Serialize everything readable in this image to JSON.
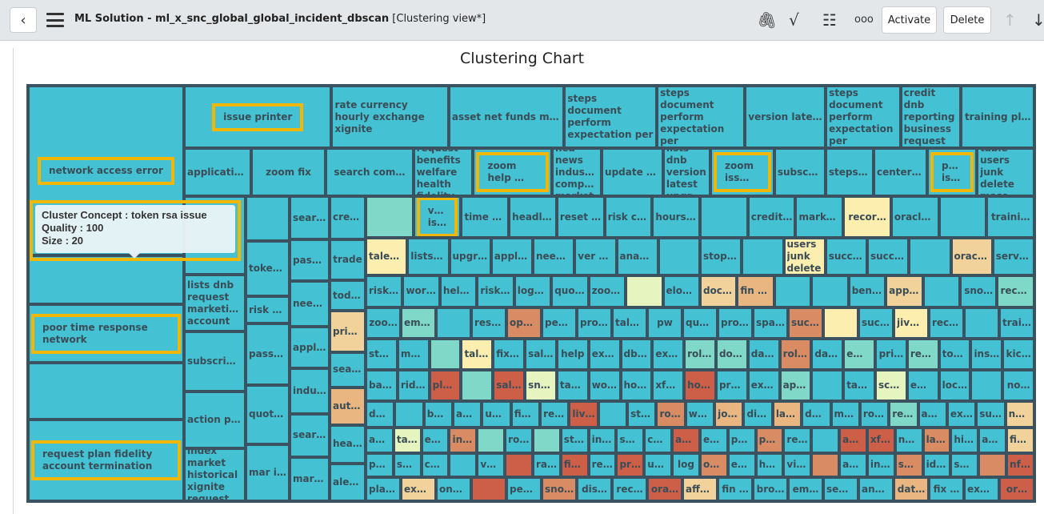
{
  "header": {
    "back_icon": "chevron-left-icon",
    "menu_icon": "hamburger-icon",
    "title": "ML Solution - ml_x_snc_global_global_incident_dbscan",
    "view": "[Clustering view*]",
    "icons": [
      "paperclip-icon",
      "activity-icon",
      "sliders-icon",
      "more-icon"
    ],
    "activate_label": "Activate",
    "delete_label": "Delete"
  },
  "chart_title": "Clustering Chart",
  "treemap": {
    "palette": {
      "t": "#45c1d4",
      "g": "#7fd8c8",
      "y": "#fbeeae",
      "l": "#e6f4c0",
      "o": "#f1d29b",
      "p": "#e9b681",
      "r": "#d98b64",
      "d": "#cd5f48"
    },
    "left": [
      {
        "label": "network access error",
        "c": "t",
        "hl": true
      },
      {
        "label": "",
        "c": "t"
      },
      {
        "label": "poor time response network",
        "c": "t",
        "hl": true
      },
      {
        "label": "",
        "c": "t"
      },
      {
        "label": "request plan fidelity account termination",
        "c": "t",
        "hl": true
      }
    ],
    "top_rows": [
      [
        {
          "label": "issue printer",
          "c": "t",
          "hl": true
        },
        {
          "label": "rate currency hourly exchange xignite",
          "c": "t",
          "w": true
        },
        {
          "label": "asset net funds mutu…",
          "c": "t"
        },
        {
          "label": "steps document perform expectation per",
          "c": "t",
          "w": true
        },
        {
          "label": "steps document perform expectation per",
          "c": "t",
          "w": true
        },
        {
          "label": "version lates…",
          "c": "t"
        },
        {
          "label": "steps document perform expectation per",
          "c": "t",
          "w": true
        },
        {
          "label": "credit dnb reporting business request",
          "c": "t",
          "w": true
        },
        {
          "label": "training pl…",
          "c": "t"
        }
      ],
      [
        {
          "label": "applicatio…",
          "c": "t"
        },
        {
          "label": "zoom fix",
          "c": "t"
        },
        {
          "label": "search com…",
          "c": "t"
        },
        {
          "label": "request benefits welfare health fidelity",
          "c": "t",
          "w": true
        },
        {
          "label": "zoom help …",
          "c": "t",
          "hl": true
        },
        {
          "label": "hea news industry company market",
          "c": "t",
          "w": true
        },
        {
          "label": "update ba…",
          "c": "t"
        },
        {
          "label": "lists dnb version latest upgrade",
          "c": "t",
          "w": true
        },
        {
          "label": "zoom iss…",
          "c": "t",
          "hl": true
        },
        {
          "label": "subscript…",
          "c": "t"
        },
        {
          "label": "steps do…",
          "c": "t"
        },
        {
          "label": "center fi…",
          "c": "t"
        },
        {
          "label": "print issue",
          "c": "t",
          "hl": true
        },
        {
          "label": "table users junk delete mass",
          "c": "t",
          "w": true
        }
      ]
    ],
    "mid_columns": [
      [
        {
          "label": "",
          "c": "t"
        },
        {
          "label": "lists dnb request marketing account",
          "c": "t",
          "w": true
        },
        {
          "label": "subscripti…",
          "c": "t"
        },
        {
          "label": "action pla…",
          "c": "t"
        },
        {
          "label": "index market historical xignite request",
          "c": "t",
          "w": true
        }
      ],
      [
        {
          "label": "",
          "c": "t"
        },
        {
          "label": "token …",
          "c": "t"
        },
        {
          "label": "risk cr…",
          "c": "t"
        },
        {
          "label": "passco…",
          "c": "t"
        },
        {
          "label": "quotes…",
          "c": "t"
        },
        {
          "label": "mar in…",
          "c": "t"
        }
      ],
      [
        {
          "label": "search…",
          "c": "t"
        },
        {
          "label": "passc…",
          "c": "t"
        },
        {
          "label": "need …",
          "c": "t"
        },
        {
          "label": "appli…",
          "c": "t"
        },
        {
          "label": "indus…",
          "c": "t"
        },
        {
          "label": "searc…",
          "c": "t"
        },
        {
          "label": "mark…",
          "c": "t"
        }
      ],
      [
        {
          "label": "credit d…",
          "c": "t"
        },
        {
          "label": "trade",
          "c": "t"
        },
        {
          "label": "toda…",
          "c": "t"
        },
        {
          "label": "print…",
          "c": "o"
        },
        {
          "label": "searc…",
          "c": "t"
        },
        {
          "label": "auto…",
          "c": "p"
        },
        {
          "label": "hea …",
          "c": "t"
        },
        {
          "label": "alert …",
          "c": "t"
        }
      ]
    ],
    "grid_rows": [
      [
        {
          "label": "",
          "c": "g"
        },
        {
          "label": "vpn iss…",
          "c": "t",
          "hl": true
        },
        {
          "label": "time ap…",
          "c": "t"
        },
        {
          "label": "headlin…",
          "c": "t"
        },
        {
          "label": "reset p…",
          "c": "t"
        },
        {
          "label": "risk cr…",
          "c": "t"
        },
        {
          "label": "hours c…",
          "c": "t"
        },
        {
          "label": "",
          "c": "t"
        },
        {
          "label": "credit …",
          "c": "t"
        },
        {
          "label": "marke…",
          "c": "t"
        },
        {
          "label": "recor…",
          "c": "y"
        },
        {
          "label": "oracle…",
          "c": "t"
        },
        {
          "label": "",
          "c": "t"
        },
        {
          "label": "traini…",
          "c": "t"
        }
      ],
      [
        {
          "label": "taleo o…",
          "c": "y"
        },
        {
          "label": "lists d…",
          "c": "t"
        },
        {
          "label": "upgr d…",
          "c": "t"
        },
        {
          "label": "applic…",
          "c": "t"
        },
        {
          "label": "need h…",
          "c": "t"
        },
        {
          "label": "ver he…",
          "c": "t"
        },
        {
          "label": "anapla…",
          "c": "t"
        },
        {
          "label": "",
          "c": "t"
        },
        {
          "label": "stopp…",
          "c": "t"
        },
        {
          "label": "",
          "c": "t"
        },
        {
          "label": "table users junk delete mass",
          "c": "y",
          "w": true
        },
        {
          "label": "succe…",
          "c": "t"
        },
        {
          "label": "succe…",
          "c": "t"
        },
        {
          "label": "",
          "c": "t"
        },
        {
          "label": "oracl…",
          "c": "o"
        },
        {
          "label": "servi…",
          "c": "t"
        }
      ],
      [
        {
          "label": "risk c…",
          "c": "t"
        },
        {
          "label": "work …",
          "c": "t"
        },
        {
          "label": "help v…",
          "c": "t"
        },
        {
          "label": "risk c…",
          "c": "t"
        },
        {
          "label": "loggi…",
          "c": "t"
        },
        {
          "label": "quot…",
          "c": "t"
        },
        {
          "label": "zoom…",
          "c": "t"
        },
        {
          "label": "",
          "c": "l"
        },
        {
          "label": "eloq…",
          "c": "t"
        },
        {
          "label": "docu…",
          "c": "o"
        },
        {
          "label": "fin or…",
          "c": "p"
        },
        {
          "label": "",
          "c": "t"
        },
        {
          "label": "",
          "c": "t"
        },
        {
          "label": "bene…",
          "c": "t"
        },
        {
          "label": "apps…",
          "c": "o"
        },
        {
          "label": "",
          "c": "t"
        },
        {
          "label": "sno…",
          "c": "t"
        },
        {
          "label": "reco…",
          "c": "g"
        }
      ],
      [
        {
          "label": "zoo…",
          "c": "t"
        },
        {
          "label": "email…",
          "c": "g"
        },
        {
          "label": "",
          "c": "t"
        },
        {
          "label": "reset…",
          "c": "t"
        },
        {
          "label": "open…",
          "c": "r"
        },
        {
          "label": "peop…",
          "c": "t"
        },
        {
          "label": "provi…",
          "c": "t"
        },
        {
          "label": "taleo…",
          "c": "t"
        },
        {
          "label": "pw",
          "c": "t"
        },
        {
          "label": "quot…",
          "c": "t"
        },
        {
          "label": "probl…",
          "c": "t"
        },
        {
          "label": "spac…",
          "c": "t"
        },
        {
          "label": "succ…",
          "c": "r"
        },
        {
          "label": "",
          "c": "y"
        },
        {
          "label": "succ…",
          "c": "t"
        },
        {
          "label": "jive …",
          "c": "y"
        },
        {
          "label": "reco…",
          "c": "t"
        },
        {
          "label": "",
          "c": "t"
        },
        {
          "label": "train…",
          "c": "t"
        }
      ],
      [
        {
          "label": "step…",
          "c": "t"
        },
        {
          "label": "mou…",
          "c": "t"
        },
        {
          "label": "",
          "c": "g"
        },
        {
          "label": "tale…",
          "c": "y"
        },
        {
          "label": "fixe…",
          "c": "t"
        },
        {
          "label": "sale…",
          "c": "t"
        },
        {
          "label": "help",
          "c": "t"
        },
        {
          "label": "expi…",
          "c": "t"
        },
        {
          "label": "db l…",
          "c": "t"
        },
        {
          "label": "expi…",
          "c": "t"
        },
        {
          "label": "role…",
          "c": "g"
        },
        {
          "label": "docu…",
          "c": "g"
        },
        {
          "label": "dat…",
          "c": "t"
        },
        {
          "label": "role…",
          "c": "r"
        },
        {
          "label": "dat…",
          "c": "t"
        },
        {
          "label": "em…",
          "c": "g"
        },
        {
          "label": "pri…",
          "c": "t"
        },
        {
          "label": "rec…",
          "c": "g"
        },
        {
          "label": "tok…",
          "c": "t"
        },
        {
          "label": "insi…",
          "c": "t"
        },
        {
          "label": "kic…",
          "c": "t"
        }
      ],
      [
        {
          "label": "back…",
          "c": "t"
        },
        {
          "label": "rid …",
          "c": "t"
        },
        {
          "label": "pls …",
          "c": "d"
        },
        {
          "label": "",
          "c": "g"
        },
        {
          "label": "sale…",
          "c": "d"
        },
        {
          "label": "sno…",
          "c": "l"
        },
        {
          "label": "tabl…",
          "c": "t"
        },
        {
          "label": "wor…",
          "c": "t"
        },
        {
          "label": "hon…",
          "c": "t"
        },
        {
          "label": "xfor…",
          "c": "t"
        },
        {
          "label": "hon…",
          "c": "d"
        },
        {
          "label": "pro…",
          "c": "t"
        },
        {
          "label": "exp…",
          "c": "t"
        },
        {
          "label": "appl…",
          "c": "g"
        },
        {
          "label": "",
          "c": "t"
        },
        {
          "label": "tabl…",
          "c": "t"
        },
        {
          "label": "scre…",
          "c": "l"
        },
        {
          "label": "ema…",
          "c": "t"
        },
        {
          "label": "lock…",
          "c": "t"
        },
        {
          "label": "",
          "c": "t"
        },
        {
          "label": "no…",
          "c": "t"
        }
      ],
      [
        {
          "label": "db is…",
          "c": "t"
        },
        {
          "label": "",
          "c": "t"
        },
        {
          "label": "ben…",
          "c": "t"
        },
        {
          "label": "aut…",
          "c": "t"
        },
        {
          "label": "una…",
          "c": "t"
        },
        {
          "label": "fin …",
          "c": "t"
        },
        {
          "label": "ret…",
          "c": "t"
        },
        {
          "label": "live…",
          "c": "d"
        },
        {
          "label": "",
          "c": "t"
        },
        {
          "label": "ste…",
          "c": "t"
        },
        {
          "label": "rol…",
          "c": "r"
        },
        {
          "label": "wor…",
          "c": "t"
        },
        {
          "label": "job…",
          "c": "p"
        },
        {
          "label": "dis…",
          "c": "t"
        },
        {
          "label": "lau…",
          "c": "p"
        },
        {
          "label": "dat…",
          "c": "t"
        },
        {
          "label": "mo…",
          "c": "t"
        },
        {
          "label": "rol…",
          "c": "t"
        },
        {
          "label": "rec…",
          "c": "g"
        },
        {
          "label": "ana…",
          "c": "t"
        },
        {
          "label": "ext…",
          "c": "t"
        },
        {
          "label": "suc…",
          "c": "t"
        },
        {
          "label": "not…",
          "c": "o"
        }
      ],
      [
        {
          "label": "appli…",
          "c": "t"
        },
        {
          "label": "tax …",
          "c": "l"
        },
        {
          "label": "exh…",
          "c": "t"
        },
        {
          "label": "ince…",
          "c": "r"
        },
        {
          "label": "",
          "c": "g"
        },
        {
          "label": "role…",
          "c": "t"
        },
        {
          "label": "",
          "c": "g"
        },
        {
          "label": "ste…",
          "c": "t"
        },
        {
          "label": "insi…",
          "c": "t"
        },
        {
          "label": "sno…",
          "c": "t"
        },
        {
          "label": "co…",
          "c": "t"
        },
        {
          "label": "aff…",
          "c": "d"
        },
        {
          "label": "ex…",
          "c": "t"
        },
        {
          "label": "pu…",
          "c": "t"
        },
        {
          "label": "pp…",
          "c": "r"
        },
        {
          "label": "rec…",
          "c": "t"
        },
        {
          "label": "",
          "c": "t"
        },
        {
          "label": "aff…",
          "c": "d"
        },
        {
          "label": "xfo…",
          "c": "d"
        },
        {
          "label": "no…",
          "c": "t"
        },
        {
          "label": "lau…",
          "c": "r"
        },
        {
          "label": "hir…",
          "c": "t"
        },
        {
          "label": "aff…",
          "c": "t"
        },
        {
          "label": "fin…",
          "c": "o"
        }
      ],
      [
        {
          "label": "pw l…",
          "c": "t"
        },
        {
          "label": "sub…",
          "c": "t"
        },
        {
          "label": "con…",
          "c": "t"
        },
        {
          "label": "",
          "c": "t"
        },
        {
          "label": "vpn …",
          "c": "t"
        },
        {
          "label": "",
          "c": "d"
        },
        {
          "label": "rat…",
          "c": "t"
        },
        {
          "label": "fin …",
          "c": "d"
        },
        {
          "label": "res…",
          "c": "t"
        },
        {
          "label": "pri…",
          "c": "d"
        },
        {
          "label": "un…",
          "c": "t"
        },
        {
          "label": "log",
          "c": "t"
        },
        {
          "label": "okt…",
          "c": "r"
        },
        {
          "label": "ex…",
          "c": "t"
        },
        {
          "label": "ho…",
          "c": "t"
        },
        {
          "label": "vid…",
          "c": "t"
        },
        {
          "label": "",
          "c": "r"
        },
        {
          "label": "an…",
          "c": "t"
        },
        {
          "label": "inv…",
          "c": "t"
        },
        {
          "label": "sn…",
          "c": "r"
        },
        {
          "label": "ide…",
          "c": "t"
        },
        {
          "label": "ser…",
          "c": "t"
        },
        {
          "label": "",
          "c": "r"
        },
        {
          "label": "nfo…",
          "c": "d"
        }
      ],
      [
        {
          "label": "plat…",
          "c": "t"
        },
        {
          "label": "exp…",
          "c": "o"
        },
        {
          "label": "onb…",
          "c": "t"
        },
        {
          "label": "",
          "c": "d"
        },
        {
          "label": "peo…",
          "c": "t"
        },
        {
          "label": "sno…",
          "c": "r"
        },
        {
          "label": "dis…",
          "c": "t"
        },
        {
          "label": "rec…",
          "c": "t"
        },
        {
          "label": "ora…",
          "c": "d"
        },
        {
          "label": "affe…",
          "c": "o"
        },
        {
          "label": "fin …",
          "c": "t"
        },
        {
          "label": "bro…",
          "c": "t"
        },
        {
          "label": "em…",
          "c": "t"
        },
        {
          "label": "sem…",
          "c": "t"
        },
        {
          "label": "ana…",
          "c": "t"
        },
        {
          "label": "dat…",
          "c": "p"
        },
        {
          "label": "fix …",
          "c": "t"
        },
        {
          "label": "exp…",
          "c": "t"
        },
        {
          "label": "or…",
          "c": "d"
        }
      ]
    ],
    "tooltip": {
      "concept": "Cluster Concept : token rsa issue",
      "quality": "Quality : 100",
      "size": "Size : 20"
    }
  }
}
